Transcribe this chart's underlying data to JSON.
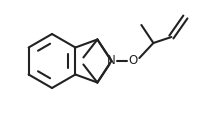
{
  "bg_color": "#ffffff",
  "line_color": "#222222",
  "line_width": 1.5,
  "figsize": [
    2.04,
    1.22
  ],
  "dpi": 100
}
